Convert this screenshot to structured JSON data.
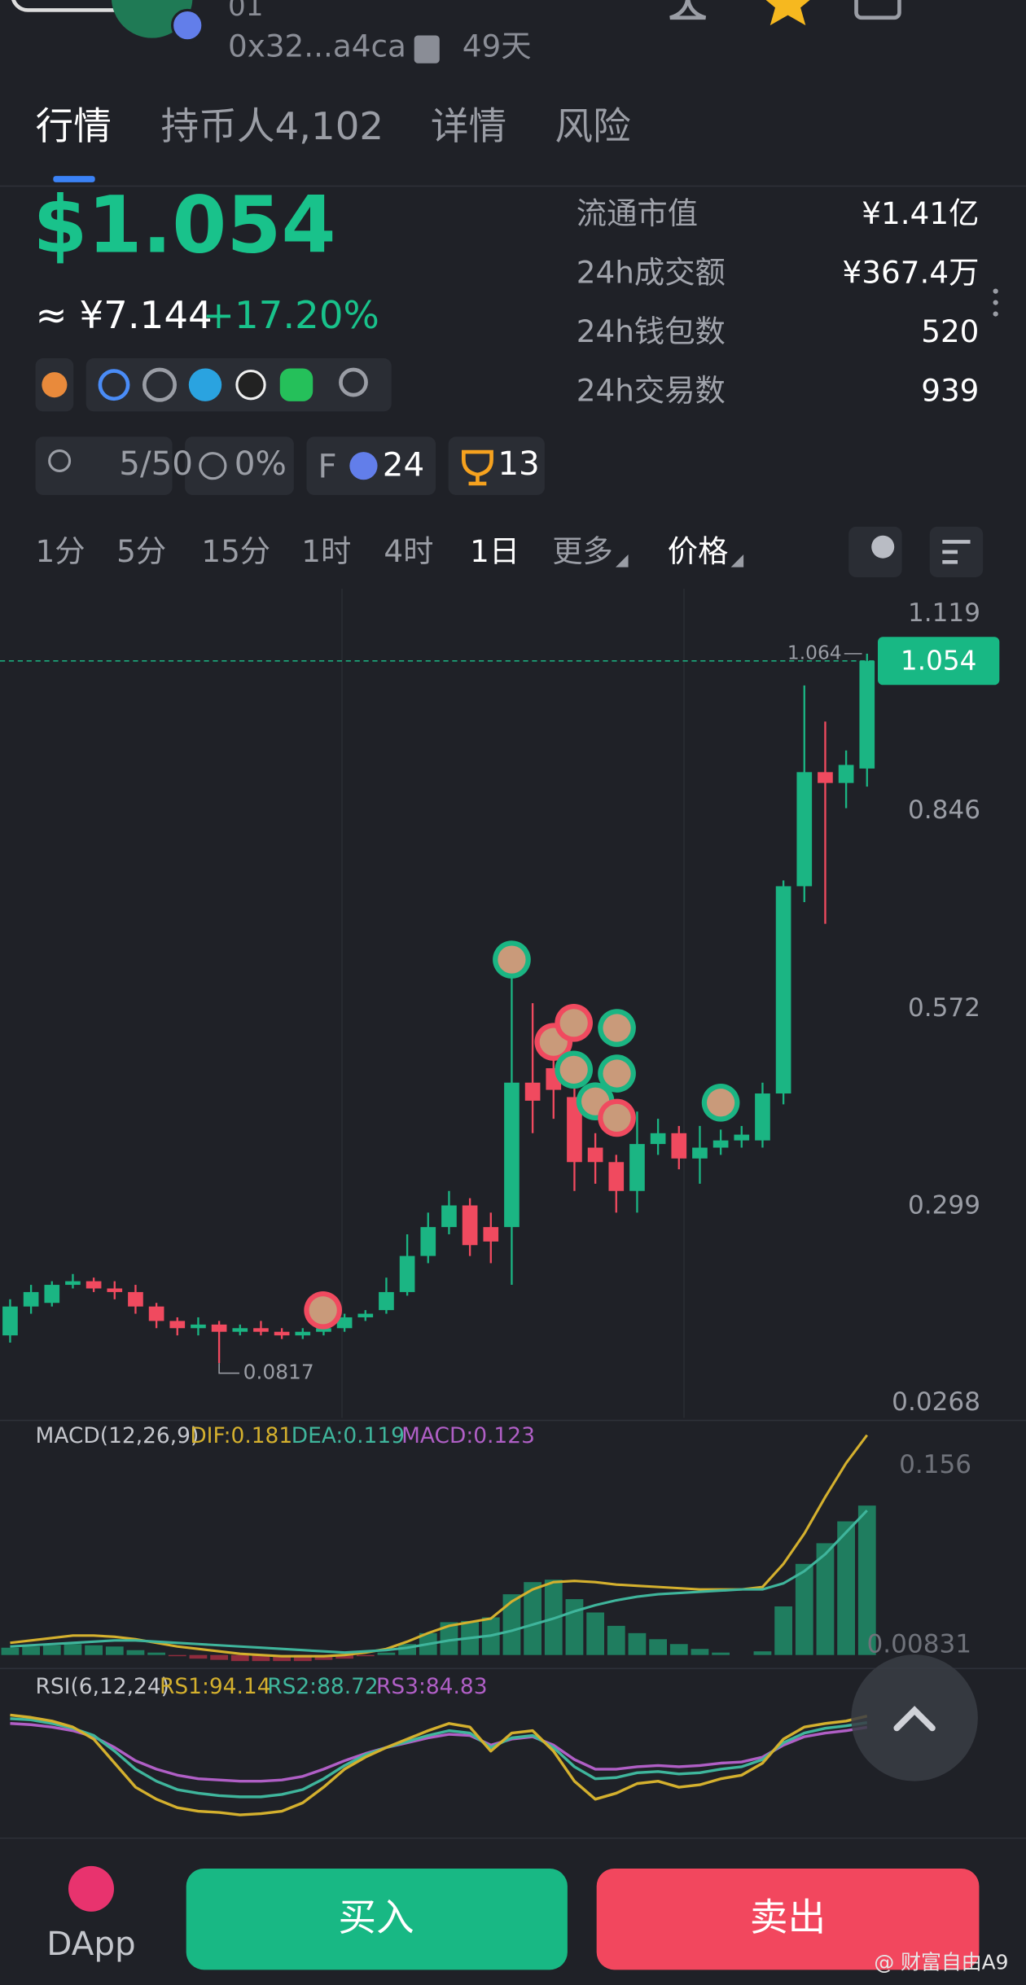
{
  "header": {
    "name": "01",
    "address": "0x32...a4ca",
    "age": "49天"
  },
  "tabs": [
    "行情",
    "持币人4,102",
    "详情",
    "风险"
  ],
  "price": {
    "usd": "$1.054",
    "cny": "≈ ¥7.144",
    "change": "+17.20%"
  },
  "stats": [
    {
      "label": "流通市值",
      "value": "¥1.41亿"
    },
    {
      "label": "24h成交额",
      "value": "¥367.4万"
    },
    {
      "label": "24h钱包数",
      "value": "520"
    },
    {
      "label": "24h交易数",
      "value": "939"
    }
  ],
  "badges": {
    "holders": "5/50",
    "tax": "0%",
    "f_label": "F",
    "f_count": "24",
    "trophy": "13"
  },
  "timeframes": [
    "1分",
    "5分",
    "15分",
    "1时",
    "4时",
    "1日",
    "更多",
    "价格"
  ],
  "chart_data": [
    {
      "type": "candlestick",
      "up_color": "#1bb583",
      "down_color": "#f04a5f",
      "open": [
        0.12,
        0.16,
        0.165,
        0.19,
        0.195,
        0.185,
        0.18,
        0.16,
        0.14,
        0.13,
        0.135,
        0.125,
        0.13,
        0.125,
        0.12,
        0.125,
        0.13,
        0.145,
        0.155,
        0.18,
        0.23,
        0.27,
        0.3,
        0.27,
        0.27,
        0.47,
        0.49,
        0.45,
        0.38,
        0.36,
        0.32,
        0.385,
        0.4,
        0.365,
        0.38,
        0.39,
        0.39,
        0.455,
        0.742,
        0.9,
        0.885,
        0.905
      ],
      "high": [
        0.17,
        0.19,
        0.195,
        0.205,
        0.2,
        0.195,
        0.19,
        0.165,
        0.145,
        0.145,
        0.14,
        0.135,
        0.14,
        0.13,
        0.13,
        0.135,
        0.15,
        0.155,
        0.2,
        0.26,
        0.29,
        0.32,
        0.31,
        0.29,
        0.62,
        0.58,
        0.55,
        0.51,
        0.4,
        0.37,
        0.43,
        0.42,
        0.41,
        0.41,
        0.405,
        0.41,
        0.47,
        0.75,
        1.02,
        0.97,
        0.93,
        1.064
      ],
      "low": [
        0.11,
        0.15,
        0.16,
        0.185,
        0.18,
        0.17,
        0.15,
        0.13,
        0.12,
        0.12,
        0.0817,
        0.12,
        0.12,
        0.115,
        0.115,
        0.12,
        0.125,
        0.14,
        0.15,
        0.175,
        0.22,
        0.26,
        0.23,
        0.22,
        0.19,
        0.4,
        0.42,
        0.32,
        0.33,
        0.29,
        0.29,
        0.37,
        0.35,
        0.33,
        0.37,
        0.38,
        0.38,
        0.44,
        0.72,
        0.69,
        0.85,
        0.88
      ],
      "close": [
        0.16,
        0.18,
        0.19,
        0.195,
        0.185,
        0.18,
        0.16,
        0.14,
        0.13,
        0.135,
        0.125,
        0.13,
        0.125,
        0.12,
        0.125,
        0.13,
        0.145,
        0.15,
        0.18,
        0.23,
        0.27,
        0.3,
        0.245,
        0.25,
        0.47,
        0.445,
        0.46,
        0.36,
        0.36,
        0.32,
        0.385,
        0.4,
        0.365,
        0.38,
        0.39,
        0.398,
        0.455,
        0.742,
        0.9,
        0.885,
        0.91,
        1.054
      ],
      "ylim": [
        0.0058,
        1.1453
      ],
      "yticks": [
        1.119,
        0.846,
        0.572,
        0.299,
        0.0268
      ],
      "last_price_line": true
    },
    {
      "type": "macd",
      "title": "MACD(12,26,9)",
      "histogram_name": "MACD:0.123",
      "histogram_color": "#b05fc6",
      "up_color": "#1f7d5f",
      "down_color": "#8f2c3d",
      "values": [
        0.006,
        0.007,
        0.008,
        0.009,
        0.008,
        0.007,
        0.004,
        0.002,
        -0.001,
        -0.003,
        -0.004,
        -0.005,
        -0.005,
        -0.005,
        -0.005,
        -0.004,
        -0.003,
        -0.001,
        0.002,
        0.009,
        0.018,
        0.027,
        0.028,
        0.031,
        0.05,
        0.06,
        0.062,
        0.046,
        0.035,
        0.024,
        0.018,
        0.013,
        0.009,
        0.005,
        0.002,
        0,
        0.003,
        0.04,
        0.075,
        0.092,
        0.11,
        0.123
      ],
      "series": [
        {
          "name": "DIF:0.181",
          "color": "#d4b02e",
          "values": [
            0.01,
            0.012,
            0.014,
            0.016,
            0.016,
            0.015,
            0.013,
            0.01,
            0.007,
            0.005,
            0.003,
            0.001,
            0,
            -0.001,
            -0.001,
            -0.001,
            0,
            0.002,
            0.005,
            0.011,
            0.018,
            0.024,
            0.027,
            0.03,
            0.044,
            0.054,
            0.06,
            0.061,
            0.06,
            0.058,
            0.057,
            0.056,
            0.055,
            0.054,
            0.054,
            0.054,
            0.056,
            0.075,
            0.1,
            0.13,
            0.158,
            0.181
          ]
        },
        {
          "name": "DEA:0.119",
          "color": "#3fb59c",
          "values": [
            0.007,
            0.008,
            0.009,
            0.01,
            0.011,
            0.012,
            0.012,
            0.011,
            0.01,
            0.009,
            0.008,
            0.007,
            0.006,
            0.005,
            0.004,
            0.003,
            0.002,
            0.003,
            0.004,
            0.006,
            0.009,
            0.012,
            0.014,
            0.016,
            0.02,
            0.025,
            0.03,
            0.036,
            0.041,
            0.045,
            0.048,
            0.05,
            0.051,
            0.052,
            0.053,
            0.054,
            0.054,
            0.059,
            0.069,
            0.083,
            0.101,
            0.119
          ]
        }
      ],
      "ylim": [
        -0.008,
        0.19
      ],
      "yticks": [
        0.156,
        0.00831
      ]
    },
    {
      "type": "rsi",
      "title": "RSI(6,12,24)",
      "series": [
        {
          "name": "RS1:94.14",
          "color": "#d4b02e",
          "values": [
            95,
            93,
            90,
            85,
            75,
            55,
            35,
            25,
            18,
            15,
            14,
            12,
            13,
            15,
            22,
            35,
            50,
            60,
            68,
            75,
            82,
            88,
            85,
            65,
            80,
            82,
            65,
            40,
            25,
            30,
            38,
            40,
            35,
            37,
            42,
            45,
            55,
            75,
            85,
            88,
            90,
            94.14
          ]
        },
        {
          "name": "RS2:88.72",
          "color": "#3fb59c",
          "values": [
            92,
            91,
            88,
            84,
            78,
            65,
            50,
            40,
            33,
            30,
            28,
            27,
            27,
            29,
            33,
            42,
            53,
            62,
            68,
            73,
            78,
            82,
            80,
            68,
            76,
            78,
            68,
            52,
            42,
            43,
            47,
            48,
            46,
            47,
            50,
            52,
            58,
            72,
            80,
            84,
            86,
            88.72
          ]
        },
        {
          "name": "RS3:84.83",
          "color": "#b05fc6",
          "values": [
            88,
            87,
            85,
            82,
            77,
            68,
            57,
            50,
            45,
            42,
            41,
            40,
            40,
            41,
            44,
            50,
            57,
            63,
            68,
            72,
            76,
            79,
            78,
            70,
            75,
            77,
            70,
            58,
            50,
            50,
            52,
            53,
            52,
            53,
            55,
            56,
            60,
            70,
            77,
            80,
            82,
            84.83
          ]
        }
      ],
      "ylim": [
        0,
        100
      ]
    }
  ],
  "bottom": {
    "dapp": "DApp",
    "buy": "买入",
    "sell": "卖出"
  },
  "watermark": "@ 财富自由A9"
}
